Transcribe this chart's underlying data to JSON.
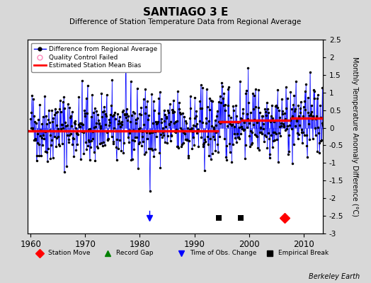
{
  "title": "SANTIAGO 3 E",
  "subtitle": "Difference of Station Temperature Data from Regional Average",
  "ylabel_right": "Monthly Temperature Anomaly Difference (°C)",
  "xlim": [
    1959.5,
    2013.5
  ],
  "ylim": [
    -3.0,
    2.5
  ],
  "yticks": [
    -3.0,
    -2.5,
    -2.0,
    -1.5,
    -1.0,
    -0.5,
    0.0,
    0.5,
    1.0,
    1.5,
    2.0,
    2.5
  ],
  "ytick_labels": [
    "-3",
    "-2.5",
    "-2",
    "-1.5",
    "-1",
    "-0.5",
    "0",
    "0.5",
    "1",
    "1.5",
    "2",
    "2.5"
  ],
  "xticks": [
    1960,
    1970,
    1980,
    1990,
    2000,
    2010
  ],
  "bias_segments": [
    {
      "x_start": 1959.5,
      "x_end": 1982.0,
      "bias": -0.08
    },
    {
      "x_start": 1982.0,
      "x_end": 1994.5,
      "bias": -0.08
    },
    {
      "x_start": 1994.5,
      "x_end": 1998.5,
      "bias": 0.18
    },
    {
      "x_start": 1998.5,
      "x_end": 2007.5,
      "bias": 0.22
    },
    {
      "x_start": 2007.5,
      "x_end": 2013.5,
      "bias": 0.28
    }
  ],
  "events": {
    "time_of_obs": [
      1981.75
    ],
    "empirical_breaks": [
      1994.5,
      1998.5
    ],
    "station_moves": [
      2006.5
    ]
  },
  "line_color": "#0000FF",
  "marker_color": "#000000",
  "bias_color": "#FF0000",
  "plot_bg": "#FFFFFF",
  "fig_bg": "#D8D8D8",
  "grid_color": "#FFFFFF",
  "berkeley_earth_text": "Berkeley Earth",
  "seed": 42
}
